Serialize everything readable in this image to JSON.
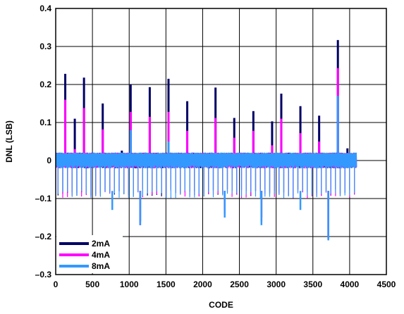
{
  "chart_data": {
    "type": "line",
    "title": "",
    "xlabel": "CODE",
    "ylabel": "DNL (LSB)",
    "xlim": [
      0,
      4500
    ],
    "ylim": [
      -0.3,
      0.4
    ],
    "x_ticks": [
      0,
      500,
      1000,
      1500,
      2000,
      2500,
      3000,
      3500,
      4000,
      4500
    ],
    "x_tick_labels": [
      "0",
      "500",
      "1000",
      "1500",
      "2000",
      "2500",
      "3000",
      "3500",
      "4000",
      "4500"
    ],
    "y_ticks": [
      -0.3,
      -0.2,
      -0.1,
      0,
      0.1,
      0.2,
      0.3,
      0.4
    ],
    "y_tick_labels": [
      "–0.3",
      "–0.2",
      "–0.1",
      "0",
      "0.1",
      "0.2",
      "0.3",
      "0.4"
    ],
    "grid": true,
    "legend_position": "bottom-left",
    "code_range": [
      0,
      4095
    ],
    "noise_band": [
      -0.01,
      0.02
    ],
    "series": [
      {
        "name": "2mA",
        "color": "#000066",
        "peaks": [
          {
            "x": 130,
            "y": 0.228
          },
          {
            "x": 260,
            "y": 0.11
          },
          {
            "x": 385,
            "y": 0.218
          },
          {
            "x": 640,
            "y": 0.15
          },
          {
            "x": 900,
            "y": 0.026
          },
          {
            "x": 1020,
            "y": 0.2
          },
          {
            "x": 1280,
            "y": 0.193
          },
          {
            "x": 1535,
            "y": 0.215
          },
          {
            "x": 1790,
            "y": 0.156
          },
          {
            "x": 2175,
            "y": 0.192
          },
          {
            "x": 2430,
            "y": 0.112
          },
          {
            "x": 2690,
            "y": 0.13
          },
          {
            "x": 2945,
            "y": 0.103
          },
          {
            "x": 3070,
            "y": 0.176
          },
          {
            "x": 3330,
            "y": 0.143
          },
          {
            "x": 3585,
            "y": 0.118
          },
          {
            "x": 3840,
            "y": 0.317
          },
          {
            "x": 3970,
            "y": 0.032
          }
        ],
        "troughs": [
          {
            "x": 1150,
            "y": -0.16
          },
          {
            "x": 2300,
            "y": -0.13
          },
          {
            "x": 2800,
            "y": -0.15
          },
          {
            "x": 3710,
            "y": -0.2
          }
        ]
      },
      {
        "name": "4mA",
        "color": "#ff00ff",
        "peaks": [
          {
            "x": 130,
            "y": 0.16
          },
          {
            "x": 260,
            "y": 0.03
          },
          {
            "x": 385,
            "y": 0.138
          },
          {
            "x": 640,
            "y": 0.082
          },
          {
            "x": 1020,
            "y": 0.128
          },
          {
            "x": 1280,
            "y": 0.115
          },
          {
            "x": 1535,
            "y": 0.128
          },
          {
            "x": 1790,
            "y": 0.078
          },
          {
            "x": 2175,
            "y": 0.112
          },
          {
            "x": 2430,
            "y": 0.06
          },
          {
            "x": 2690,
            "y": 0.078
          },
          {
            "x": 2945,
            "y": 0.04
          },
          {
            "x": 3070,
            "y": 0.11
          },
          {
            "x": 3330,
            "y": 0.072
          },
          {
            "x": 3585,
            "y": 0.05
          },
          {
            "x": 3840,
            "y": 0.243
          }
        ],
        "troughs": [
          {
            "x": 1150,
            "y": -0.17
          },
          {
            "x": 2300,
            "y": -0.14
          },
          {
            "x": 2800,
            "y": -0.16
          },
          {
            "x": 3710,
            "y": -0.205
          }
        ]
      },
      {
        "name": "8mA",
        "color": "#3399ff",
        "peaks": [
          {
            "x": 1020,
            "y": 0.08
          },
          {
            "x": 1535,
            "y": 0.05
          },
          {
            "x": 3840,
            "y": 0.17
          }
        ],
        "troughs": [
          {
            "x": 770,
            "y": -0.13
          },
          {
            "x": 1150,
            "y": -0.17
          },
          {
            "x": 2300,
            "y": -0.15
          },
          {
            "x": 2800,
            "y": -0.17
          },
          {
            "x": 3330,
            "y": -0.13
          },
          {
            "x": 3710,
            "y": -0.21
          }
        ]
      }
    ]
  }
}
